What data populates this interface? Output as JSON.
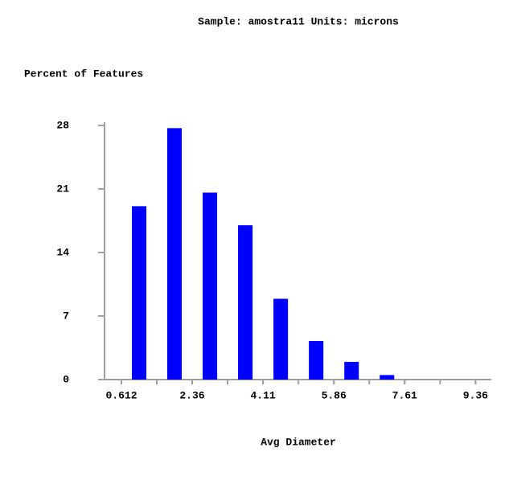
{
  "chart_data": {
    "type": "histogram",
    "title": "Sample: amostra11  Units: microns",
    "y_label": "Percent of Features",
    "x_label": "Avg Diameter",
    "bins": [
      0.612,
      1.486,
      2.36,
      3.235,
      4.11,
      4.985,
      5.86,
      6.735,
      7.61,
      8.485,
      9.36
    ],
    "values": [
      19.1,
      27.7,
      20.6,
      17.0,
      8.9,
      4.25,
      1.95,
      0.5,
      0,
      0
    ],
    "color": "#0000ff",
    "xlim": [
      0.175,
      9.75
    ],
    "xticks": [
      0.612,
      2.36,
      4.11,
      5.86,
      7.61,
      9.36
    ],
    "ylim": [
      0,
      28.35
    ],
    "yticks": [
      0,
      7,
      14,
      21,
      28
    ]
  }
}
